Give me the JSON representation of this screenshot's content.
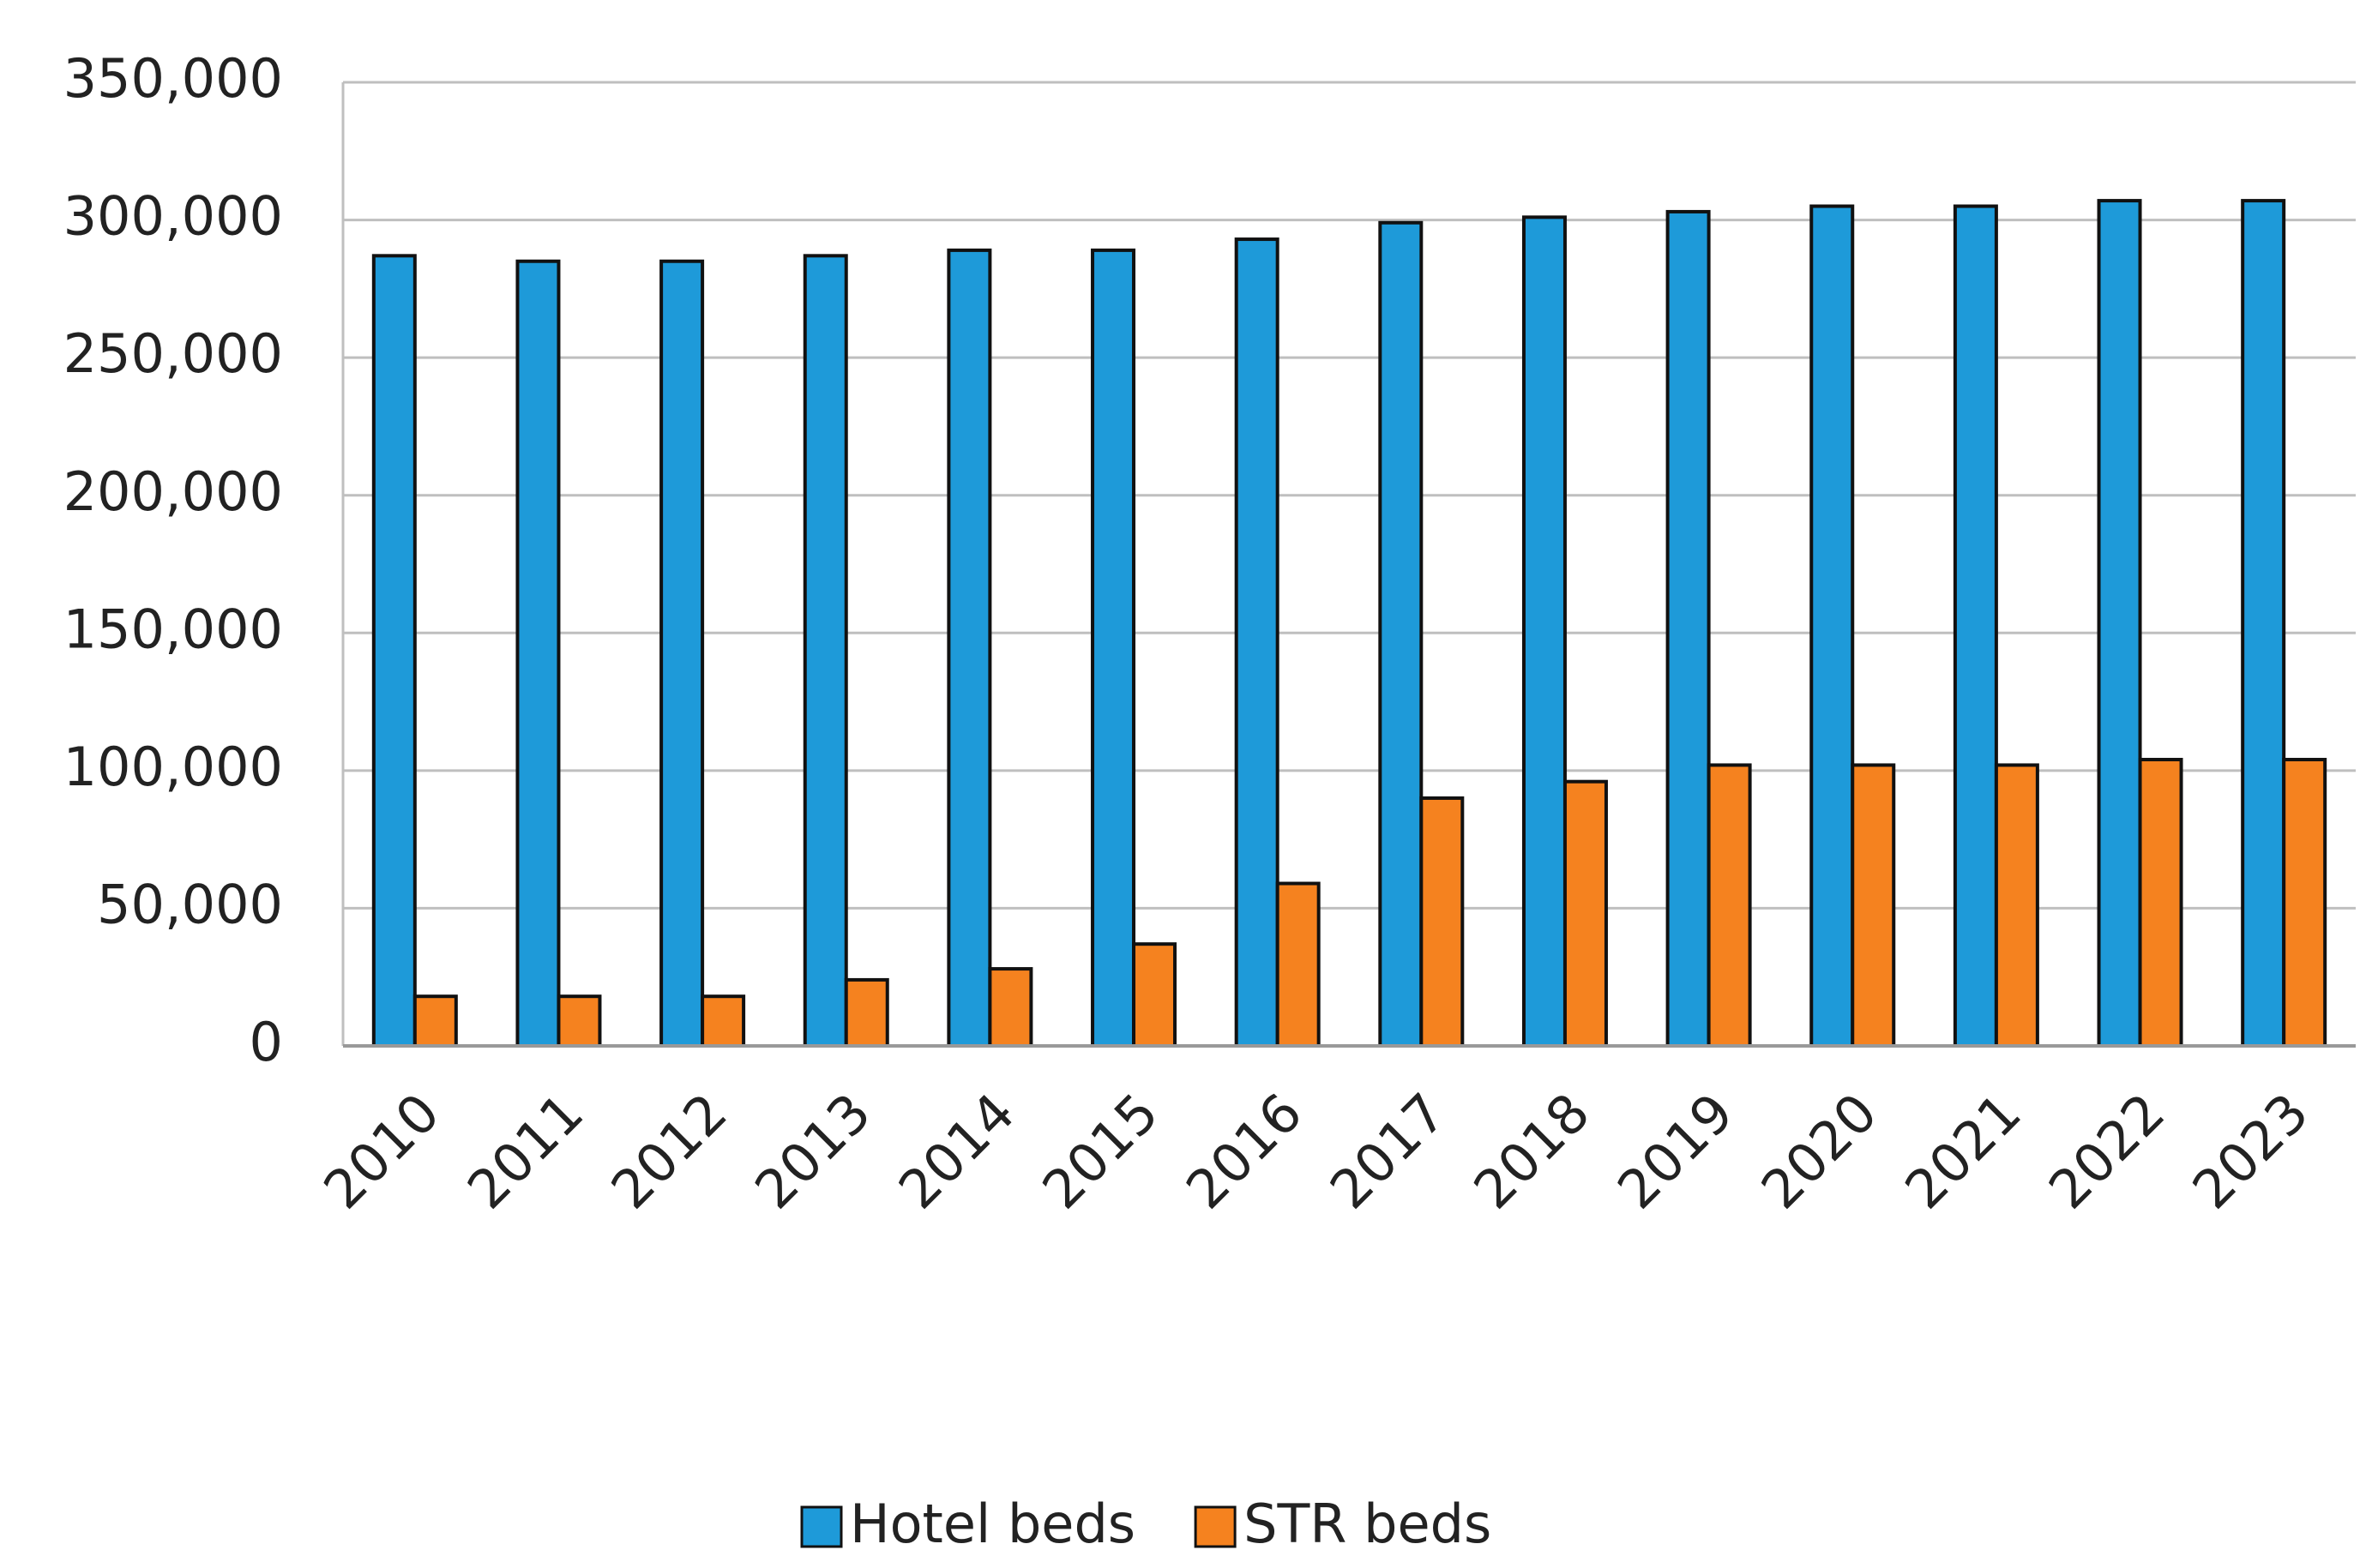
{
  "chart_data": {
    "type": "bar",
    "categories": [
      "2010",
      "2011",
      "2012",
      "2013",
      "2014",
      "2015",
      "2016",
      "2017",
      "2018",
      "2019",
      "2020",
      "2021",
      "2022",
      "2023"
    ],
    "series": [
      {
        "name": "Hotel beds",
        "color": "#1e9ad9",
        "values": [
          287000,
          285000,
          285000,
          287000,
          289000,
          289000,
          293000,
          299000,
          301000,
          303000,
          305000,
          305000,
          307000,
          307000
        ]
      },
      {
        "name": "STR beds",
        "color": "#f5821f",
        "values": [
          18000,
          18000,
          18000,
          24000,
          28000,
          37000,
          59000,
          90000,
          96000,
          102000,
          102000,
          102000,
          104000,
          104000
        ]
      }
    ],
    "ylim": [
      0,
      350000
    ],
    "yticks": [
      0,
      {
        "value": 50000,
        "label": "50,000"
      },
      {
        "value": 100000,
        "label": "100,000"
      },
      {
        "value": 150000,
        "label": "150,000"
      },
      {
        "value": 200000,
        "label": "200,000"
      },
      {
        "value": 250000,
        "label": "250,000"
      },
      {
        "value": 300000,
        "label": "300,000"
      },
      {
        "value": 350000,
        "label": "350,000"
      }
    ],
    "grid": true,
    "legend": "bottom"
  }
}
